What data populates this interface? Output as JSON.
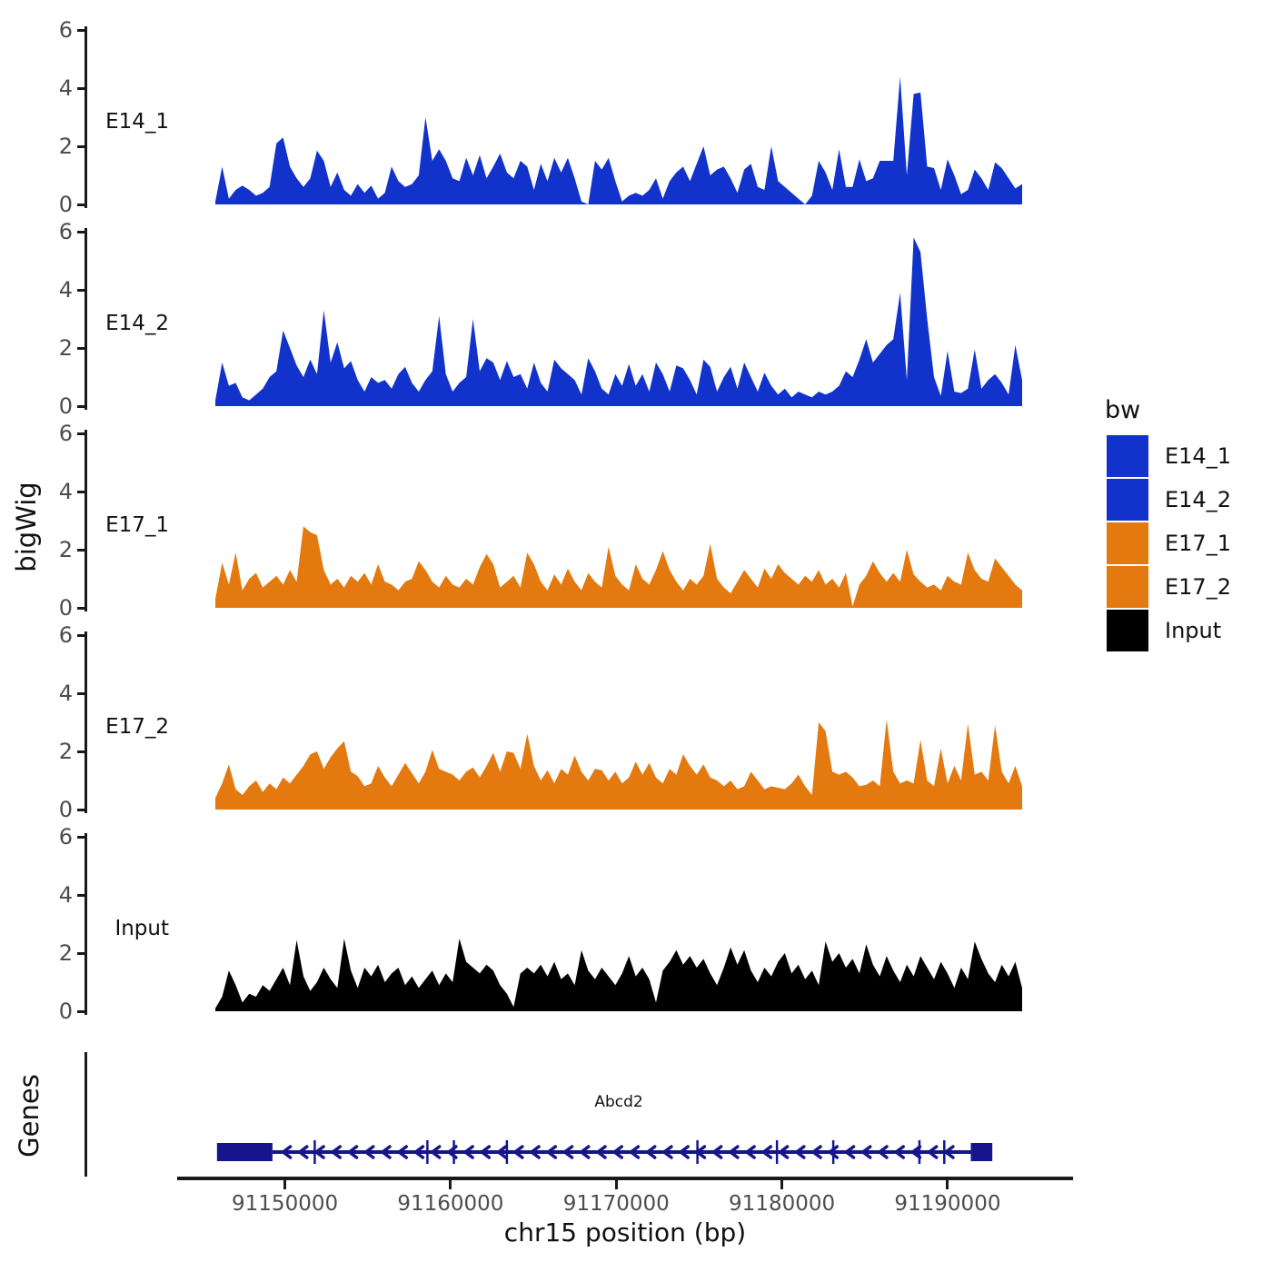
{
  "chart_data": {
    "type": "area",
    "title": "",
    "xlabel": "chr15 position (bp)",
    "ylabel": "bigWig",
    "x_range_bp": [
      91145800,
      91194500
    ],
    "x_ticks": [
      91150000,
      91160000,
      91170000,
      91180000,
      91190000
    ],
    "y_ticks": [
      0,
      2,
      4,
      6
    ],
    "ylim": [
      0,
      6
    ],
    "grid": "off",
    "legend": {
      "title": "bw",
      "position": "right",
      "entries": [
        {
          "label": "E14_1",
          "color": "#1233cb"
        },
        {
          "label": "E14_2",
          "color": "#1233cb"
        },
        {
          "label": "E17_1",
          "color": "#e3790f"
        },
        {
          "label": "E17_2",
          "color": "#e3790f"
        },
        {
          "label": "Input",
          "color": "#000000"
        }
      ]
    },
    "tracks": [
      {
        "name": "E14_1",
        "color": "#1233cb",
        "values": [
          0.1,
          1.3,
          0.2,
          0.5,
          0.65,
          0.5,
          0.3,
          0.4,
          0.6,
          2.1,
          2.3,
          1.3,
          0.9,
          0.6,
          0.9,
          1.85,
          1.5,
          0.6,
          1.1,
          0.5,
          0.3,
          0.7,
          0.4,
          0.65,
          0.2,
          0.4,
          1.3,
          0.8,
          0.6,
          0.7,
          1.0,
          3.0,
          1.5,
          1.9,
          1.5,
          0.9,
          0.8,
          1.6,
          1.0,
          1.7,
          0.9,
          1.3,
          1.75,
          1.1,
          0.9,
          1.5,
          1.3,
          0.5,
          1.4,
          0.8,
          1.6,
          1.1,
          1.6,
          0.9,
          0.1,
          0.0,
          1.5,
          1.2,
          1.6,
          0.8,
          0.1,
          0.3,
          0.4,
          0.3,
          0.5,
          0.9,
          0.2,
          0.8,
          1.1,
          1.3,
          0.8,
          1.4,
          2.0,
          1.0,
          1.2,
          1.3,
          0.9,
          0.4,
          1.2,
          1.4,
          0.6,
          0.5,
          2.0,
          0.8,
          0.6,
          0.4,
          0.2,
          0.0,
          0.3,
          1.5,
          1.1,
          0.5,
          1.9,
          0.6,
          0.6,
          1.55,
          0.8,
          0.9,
          1.5,
          1.5,
          1.5,
          4.4,
          1.0,
          3.8,
          3.85,
          1.3,
          1.25,
          0.5,
          1.55,
          1.0,
          0.35,
          0.5,
          1.2,
          0.9,
          0.5,
          1.45,
          1.25,
          0.9,
          0.55,
          0.7
        ]
      },
      {
        "name": "E14_2",
        "color": "#1233cb",
        "values": [
          0.2,
          1.5,
          0.7,
          0.8,
          0.3,
          0.2,
          0.4,
          0.6,
          1.0,
          1.2,
          2.6,
          2.0,
          1.4,
          1.0,
          1.6,
          1.1,
          3.3,
          1.5,
          2.2,
          1.3,
          1.55,
          0.9,
          0.5,
          1.0,
          0.8,
          0.9,
          0.6,
          1.1,
          1.35,
          0.8,
          0.5,
          0.9,
          1.2,
          3.1,
          1.1,
          0.5,
          0.8,
          1.0,
          3.0,
          1.2,
          1.65,
          1.5,
          0.9,
          1.55,
          1.0,
          1.1,
          0.6,
          1.5,
          0.8,
          0.5,
          1.6,
          1.3,
          1.1,
          0.9,
          0.4,
          1.65,
          1.2,
          0.6,
          0.4,
          1.1,
          0.7,
          1.45,
          0.7,
          1.1,
          0.5,
          1.5,
          1.1,
          0.5,
          1.4,
          1.3,
          0.9,
          0.4,
          1.6,
          1.35,
          0.5,
          1.0,
          1.35,
          0.6,
          1.5,
          1.0,
          0.5,
          1.15,
          0.7,
          0.4,
          0.6,
          0.3,
          0.5,
          0.4,
          0.3,
          0.5,
          0.4,
          0.5,
          0.7,
          1.2,
          1.0,
          1.6,
          2.3,
          1.5,
          1.8,
          2.1,
          2.3,
          3.9,
          0.9,
          5.8,
          5.3,
          3.0,
          1.0,
          0.35,
          1.9,
          0.5,
          0.45,
          0.6,
          1.95,
          0.6,
          0.9,
          1.1,
          0.8,
          0.4,
          2.1,
          0.9
        ]
      },
      {
        "name": "E17_1",
        "color": "#e3790f",
        "values": [
          0.3,
          1.55,
          0.8,
          1.9,
          0.6,
          1.0,
          1.2,
          0.7,
          0.9,
          1.1,
          0.8,
          1.3,
          0.9,
          2.8,
          2.6,
          2.5,
          1.3,
          0.8,
          1.0,
          0.7,
          1.1,
          0.9,
          1.2,
          0.8,
          1.5,
          0.9,
          0.8,
          0.6,
          0.9,
          1.0,
          1.6,
          1.3,
          0.9,
          0.7,
          1.1,
          0.8,
          0.7,
          1.0,
          0.8,
          1.4,
          1.85,
          1.5,
          0.7,
          0.9,
          1.1,
          0.7,
          1.9,
          1.5,
          0.9,
          0.6,
          1.15,
          0.8,
          1.35,
          0.9,
          0.6,
          1.2,
          0.9,
          0.7,
          2.1,
          1.1,
          0.8,
          0.6,
          1.5,
          1.0,
          0.8,
          1.3,
          1.95,
          1.3,
          0.9,
          0.6,
          1.0,
          0.8,
          1.1,
          2.2,
          1.0,
          0.7,
          0.5,
          0.9,
          1.3,
          1.0,
          0.7,
          1.35,
          1.0,
          1.5,
          1.2,
          1.0,
          0.8,
          1.1,
          0.9,
          1.3,
          0.8,
          1.0,
          0.7,
          1.2,
          0.05,
          0.8,
          1.1,
          1.6,
          1.2,
          0.9,
          1.2,
          0.9,
          2.0,
          1.15,
          0.9,
          0.7,
          0.8,
          0.6,
          1.1,
          0.9,
          0.8,
          1.9,
          1.3,
          1.0,
          0.9,
          1.7,
          1.4,
          1.1,
          0.8,
          0.6
        ]
      },
      {
        "name": "E17_2",
        "color": "#e3790f",
        "values": [
          0.4,
          0.9,
          1.55,
          0.7,
          0.5,
          0.8,
          1.0,
          0.6,
          0.9,
          0.7,
          1.1,
          0.9,
          1.2,
          1.5,
          1.9,
          2.0,
          1.4,
          1.8,
          2.1,
          2.35,
          1.3,
          1.15,
          0.8,
          0.9,
          1.5,
          1.1,
          0.8,
          1.2,
          1.6,
          1.25,
          0.9,
          1.3,
          2.05,
          1.4,
          1.3,
          1.2,
          1.0,
          1.3,
          1.45,
          1.1,
          1.5,
          1.95,
          1.3,
          2.0,
          1.95,
          1.4,
          2.6,
          1.5,
          1.0,
          1.35,
          0.9,
          1.4,
          1.2,
          1.85,
          1.3,
          1.0,
          1.4,
          1.35,
          1.0,
          1.3,
          0.9,
          1.1,
          1.65,
          1.2,
          1.6,
          1.1,
          0.9,
          1.4,
          1.2,
          1.9,
          1.5,
          1.2,
          1.55,
          1.1,
          1.0,
          0.8,
          1.0,
          0.7,
          0.8,
          1.3,
          1.0,
          0.7,
          0.8,
          0.75,
          0.7,
          0.9,
          1.2,
          0.8,
          0.5,
          3.0,
          2.7,
          1.3,
          1.2,
          1.3,
          1.1,
          0.8,
          0.85,
          1.0,
          0.8,
          3.1,
          1.3,
          0.9,
          1.0,
          0.9,
          2.4,
          1.0,
          0.8,
          2.1,
          0.9,
          1.5,
          1.0,
          2.95,
          1.2,
          1.3,
          1.0,
          2.9,
          1.3,
          0.9,
          1.5,
          0.8
        ]
      },
      {
        "name": "Input",
        "color": "#000000",
        "values": [
          0.1,
          0.5,
          1.4,
          0.9,
          0.3,
          0.6,
          0.5,
          0.9,
          0.7,
          1.1,
          1.5,
          0.9,
          2.45,
          1.2,
          0.7,
          1.0,
          1.5,
          1.1,
          0.8,
          2.5,
          1.4,
          0.8,
          1.5,
          1.2,
          1.6,
          1.0,
          1.3,
          1.5,
          0.9,
          1.2,
          0.8,
          1.1,
          1.4,
          0.9,
          1.3,
          1.0,
          2.5,
          1.7,
          1.5,
          1.3,
          1.6,
          1.4,
          0.9,
          0.6,
          0.15,
          1.3,
          1.5,
          1.3,
          1.6,
          1.2,
          1.7,
          1.1,
          1.3,
          0.9,
          2.1,
          1.4,
          1.1,
          1.5,
          1.2,
          0.9,
          1.3,
          1.9,
          1.2,
          1.5,
          1.1,
          0.3,
          1.4,
          1.7,
          2.1,
          1.6,
          1.9,
          1.5,
          1.8,
          1.3,
          0.9,
          1.5,
          2.2,
          1.6,
          2.1,
          1.4,
          1.0,
          1.5,
          1.2,
          1.7,
          2.0,
          1.3,
          1.6,
          1.1,
          1.4,
          0.9,
          2.4,
          1.7,
          2.0,
          1.5,
          1.8,
          1.3,
          2.3,
          1.6,
          1.2,
          1.9,
          1.4,
          1.0,
          1.6,
          1.2,
          1.9,
          1.5,
          1.1,
          1.7,
          1.3,
          0.8,
          1.5,
          1.1,
          2.4,
          1.8,
          1.3,
          1.0,
          1.6,
          1.2,
          1.7,
          0.8
        ]
      }
    ],
    "genes_track": {
      "label": "Genes",
      "gene": {
        "name": "Abcd2",
        "strand": "-",
        "color": "#15158d",
        "span_bp": [
          91145900,
          91192700
        ],
        "left_box_bp": [
          91145900,
          91149250
        ],
        "right_box_bp": [
          91191400,
          91192700
        ],
        "exon_ticks_bp": [
          91151800,
          91158600,
          91160200,
          91163400,
          91174900,
          91179700,
          91183100,
          91188300,
          91189800
        ],
        "arrow_start_bp": 91150000,
        "arrow_end_bp": 91190600,
        "arrow_spacing_bp": 1000
      }
    }
  }
}
